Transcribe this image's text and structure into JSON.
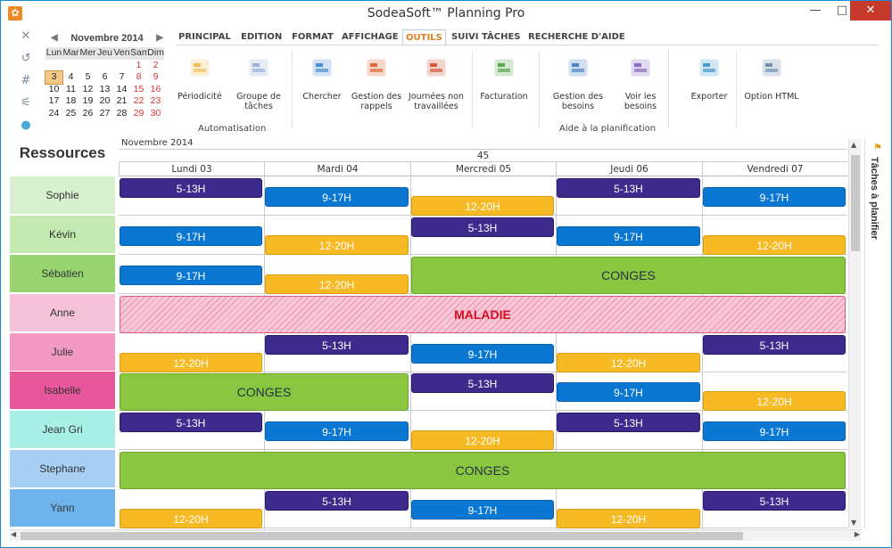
{
  "window": {
    "title": "SodeaSoft™ Planning Pro",
    "controls": [
      "—",
      "□",
      "✕"
    ]
  },
  "quick_access": [
    "✕",
    "↺",
    "#",
    "⚟",
    "●"
  ],
  "mini_calendar": {
    "month": "Novembre 2014",
    "prev": "◀",
    "next": "▶",
    "day_headers": [
      "Lun",
      "Mar",
      "Mer",
      "Jeu",
      "Ven",
      "Sam",
      "Dim"
    ],
    "weeks": [
      [
        "",
        "",
        "",
        "",
        "",
        "1",
        "2"
      ],
      [
        "3",
        "4",
        "5",
        "6",
        "7",
        "8",
        "9"
      ],
      [
        "10",
        "11",
        "12",
        "13",
        "14",
        "15",
        "16"
      ],
      [
        "17",
        "18",
        "19",
        "20",
        "21",
        "22",
        "23"
      ],
      [
        "24",
        "25",
        "26",
        "27",
        "28",
        "29",
        "30"
      ]
    ],
    "selected": "3"
  },
  "ribbon": {
    "tabs": [
      "PRINCIPAL",
      "EDITION",
      "FORMAT",
      "AFFICHAGE",
      "OUTILS",
      "SUIVI TÂCHES",
      "RECHERCHE D'AIDE"
    ],
    "active_tab": "OUTILS",
    "buttons": [
      {
        "label": "Périodicité",
        "icon": "periodicity-icon"
      },
      {
        "label": "Groupe de\ntâches",
        "icon": "task-group-icon"
      },
      {
        "label": "Chercher",
        "icon": "search-icon"
      },
      {
        "label": "Gestion des\nrappels",
        "icon": "reminder-icon"
      },
      {
        "label": "Journées non\ntravaillées",
        "icon": "calendar-off-icon"
      },
      {
        "label": "Facturation",
        "icon": "billing-icon"
      },
      {
        "label": "Gestion des\nbesoins",
        "icon": "needs-icon"
      },
      {
        "label": "Voir les\nbesoins",
        "icon": "view-needs-icon"
      },
      {
        "label": "Exporter",
        "icon": "export-icon"
      },
      {
        "label": "Option HTML",
        "icon": "html-option-icon"
      }
    ],
    "groups": [
      "Automatisation",
      "Aide à la planification"
    ]
  },
  "planning": {
    "resources_header": "Ressources",
    "month_label": "Novembre 2014",
    "week_number": "45",
    "days": [
      "Lundi 03",
      "Mardi 04",
      "Mercredi 05",
      "Jeudi 06",
      "Vendredi 07"
    ],
    "resources": [
      {
        "name": "Sophie",
        "color": "#d7f0cf"
      },
      {
        "name": "Kévin",
        "color": "#c4e9b1"
      },
      {
        "name": "Sébatien",
        "color": "#98d470"
      },
      {
        "name": "Anne",
        "color": "#f5c2da"
      },
      {
        "name": "Julie",
        "color": "#f29ac3"
      },
      {
        "name": "Isabelle",
        "color": "#e8579c"
      },
      {
        "name": "Jean Gri",
        "color": "#a8efe6"
      },
      {
        "name": "Stephane",
        "color": "#a8cff4"
      },
      {
        "name": "Yann",
        "color": "#6db3ec"
      }
    ],
    "events": [
      {
        "r": 0,
        "d": 0,
        "span": 1,
        "slot": 0,
        "type": "purple",
        "label": "5-13H"
      },
      {
        "r": 0,
        "d": 1,
        "span": 1,
        "slot": 1,
        "type": "blue",
        "label": "9-17H"
      },
      {
        "r": 0,
        "d": 2,
        "span": 1,
        "slot": 2,
        "type": "orange",
        "label": "12-20H"
      },
      {
        "r": 0,
        "d": 3,
        "span": 1,
        "slot": 0,
        "type": "purple",
        "label": "5-13H"
      },
      {
        "r": 0,
        "d": 4,
        "span": 1,
        "slot": 1,
        "type": "blue",
        "label": "9-17H"
      },
      {
        "r": 1,
        "d": 0,
        "span": 1,
        "slot": 1,
        "type": "blue",
        "label": "9-17H"
      },
      {
        "r": 1,
        "d": 1,
        "span": 1,
        "slot": 2,
        "type": "orange",
        "label": "12-20H"
      },
      {
        "r": 1,
        "d": 2,
        "span": 1,
        "slot": 0,
        "type": "purple",
        "label": "5-13H"
      },
      {
        "r": 1,
        "d": 3,
        "span": 1,
        "slot": 1,
        "type": "blue",
        "label": "9-17H"
      },
      {
        "r": 1,
        "d": 4,
        "span": 1,
        "slot": 2,
        "type": "orange",
        "label": "12-20H"
      },
      {
        "r": 2,
        "d": 0,
        "span": 1,
        "slot": 1,
        "type": "blue",
        "label": "9-17H"
      },
      {
        "r": 2,
        "d": 1,
        "span": 1,
        "slot": 2,
        "type": "orange",
        "label": "12-20H"
      },
      {
        "r": 2,
        "d": 2,
        "span": 3,
        "slot": -1,
        "type": "green",
        "label": "CONGES"
      },
      {
        "r": 3,
        "d": 0,
        "span": 5,
        "slot": -1,
        "type": "sick",
        "label": "MALADIE"
      },
      {
        "r": 4,
        "d": 0,
        "span": 1,
        "slot": 2,
        "type": "orange",
        "label": "12-20H"
      },
      {
        "r": 4,
        "d": 1,
        "span": 1,
        "slot": 0,
        "type": "purple",
        "label": "5-13H"
      },
      {
        "r": 4,
        "d": 2,
        "span": 1,
        "slot": 1,
        "type": "blue",
        "label": "9-17H"
      },
      {
        "r": 4,
        "d": 3,
        "span": 1,
        "slot": 2,
        "type": "orange",
        "label": "12-20H"
      },
      {
        "r": 4,
        "d": 4,
        "span": 1,
        "slot": 0,
        "type": "purple",
        "label": "5-13H"
      },
      {
        "r": 5,
        "d": 0,
        "span": 2,
        "slot": -1,
        "type": "green",
        "label": "CONGES"
      },
      {
        "r": 5,
        "d": 2,
        "span": 1,
        "slot": 0,
        "type": "purple",
        "label": "5-13H"
      },
      {
        "r": 5,
        "d": 3,
        "span": 1,
        "slot": 1,
        "type": "blue",
        "label": "9-17H"
      },
      {
        "r": 5,
        "d": 4,
        "span": 1,
        "slot": 2,
        "type": "orange",
        "label": "12-20H"
      },
      {
        "r": 6,
        "d": 0,
        "span": 1,
        "slot": 0,
        "type": "purple",
        "label": "5-13H"
      },
      {
        "r": 6,
        "d": 1,
        "span": 1,
        "slot": 1,
        "type": "blue",
        "label": "9-17H"
      },
      {
        "r": 6,
        "d": 2,
        "span": 1,
        "slot": 2,
        "type": "orange",
        "label": "12-20H"
      },
      {
        "r": 6,
        "d": 3,
        "span": 1,
        "slot": 0,
        "type": "purple",
        "label": "5-13H"
      },
      {
        "r": 6,
        "d": 4,
        "span": 1,
        "slot": 1,
        "type": "blue",
        "label": "9-17H"
      },
      {
        "r": 7,
        "d": 0,
        "span": 5,
        "slot": -1,
        "type": "green",
        "label": "CONGES"
      },
      {
        "r": 8,
        "d": 0,
        "span": 1,
        "slot": 2,
        "type": "orange",
        "label": "12-20H"
      },
      {
        "r": 8,
        "d": 1,
        "span": 1,
        "slot": 0,
        "type": "purple",
        "label": "5-13H"
      },
      {
        "r": 8,
        "d": 2,
        "span": 1,
        "slot": 1,
        "type": "blue",
        "label": "9-17H"
      },
      {
        "r": 8,
        "d": 3,
        "span": 1,
        "slot": 2,
        "type": "orange",
        "label": "12-20H"
      },
      {
        "r": 8,
        "d": 4,
        "span": 1,
        "slot": 0,
        "type": "purple",
        "label": "5-13H"
      }
    ]
  },
  "side_panel": {
    "label": "Tâches à planifier",
    "flag": "⚑"
  },
  "scroll": {
    "up": "▲",
    "down": "▼",
    "left": "◀",
    "right": "▶"
  }
}
